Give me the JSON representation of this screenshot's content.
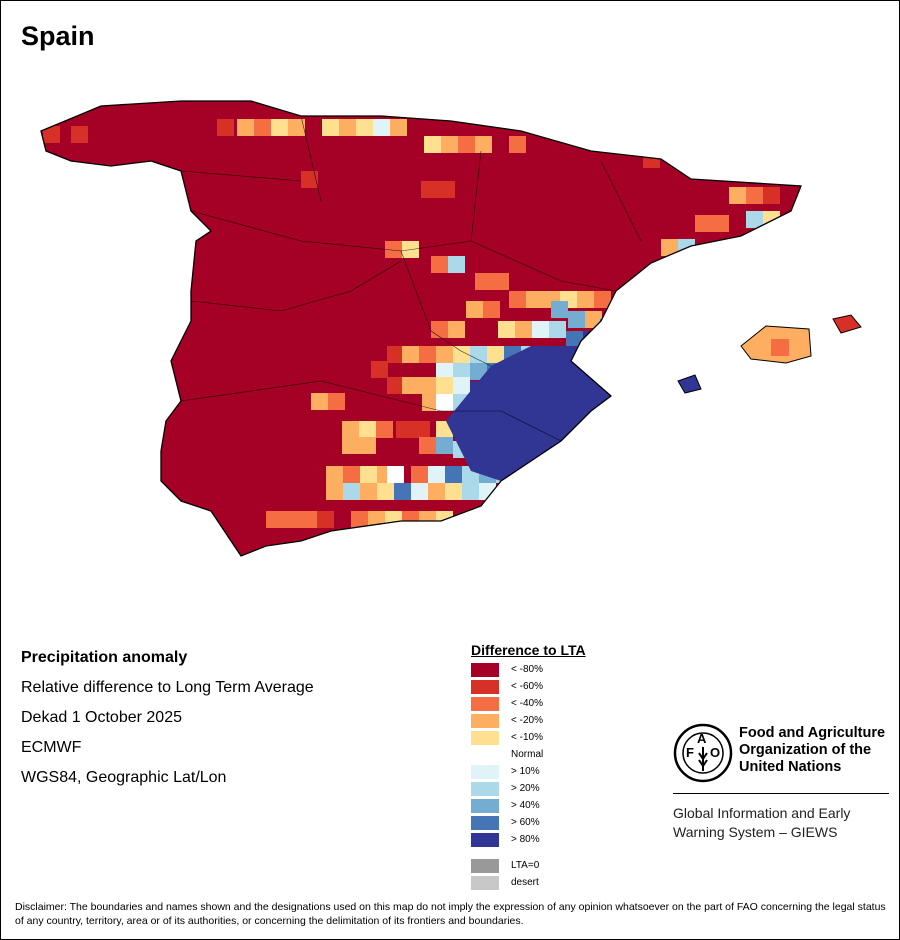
{
  "title": "Spain",
  "info": {
    "heading": "Precipitation anomaly",
    "subtitle": "Relative difference to Long Term Average",
    "period": "Dekad 1 October 2025",
    "source": "ECMWF",
    "projection": "WGS84, Geographic Lat/Lon"
  },
  "legend": {
    "title": "Difference to LTA",
    "items": [
      {
        "label": "< -80%",
        "color": "#a50026"
      },
      {
        "label": "< -60%",
        "color": "#d73027"
      },
      {
        "label": "< -40%",
        "color": "#f46d43"
      },
      {
        "label": "< -20%",
        "color": "#fdae61"
      },
      {
        "label": "< -10%",
        "color": "#fee090"
      },
      {
        "label": "Normal",
        "color": "#ffffff"
      },
      {
        "label": "> 10%",
        "color": "#e0f3f8"
      },
      {
        "label": "> 20%",
        "color": "#abd9e9"
      },
      {
        "label": "> 40%",
        "color": "#74add1"
      },
      {
        "label": "> 60%",
        "color": "#4575b4"
      },
      {
        "label": "> 80%",
        "color": "#313695"
      },
      {
        "label": "LTA=0",
        "color": "#999999"
      },
      {
        "label": "desert",
        "color": "#c8c8c8"
      }
    ]
  },
  "org": {
    "name_line1": "Food and Agriculture",
    "name_line2": "Organization of the",
    "name_line3": "United Nations",
    "logo_text": "FAO FIAT PANIS",
    "system_line1": "Global Information and Early",
    "system_line2": "Warning System – GIEWS"
  },
  "disclaimer": "Disclaimer: The boundaries and names shown and the designations used on this map do not imply the expression of any opinion whatsoever on the part of FAO concerning the legal status of any country, territory, area or of its authorities, or concerning the delimitation of its frontiers and boundaries."
}
